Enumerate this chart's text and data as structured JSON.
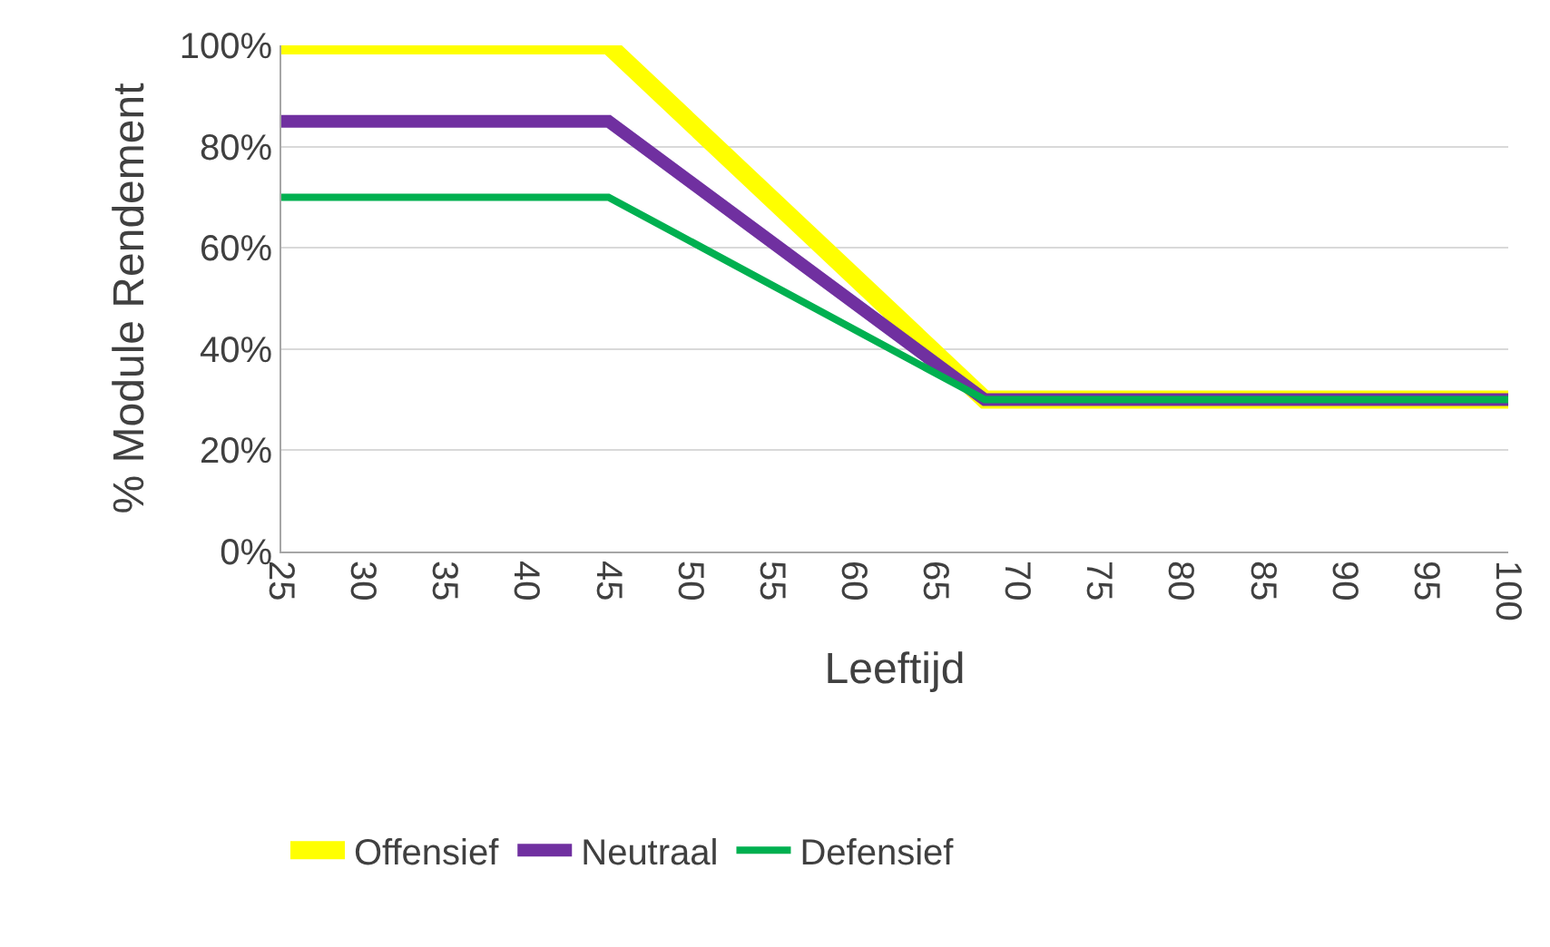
{
  "chart_data": {
    "type": "line",
    "xlabel": "Leeftijd",
    "ylabel": "% Module Rendement",
    "x": [
      25,
      45,
      68,
      100
    ],
    "series": [
      {
        "name": "Offensief",
        "color": "#ffff00",
        "values": [
          100,
          100,
          30,
          30
        ]
      },
      {
        "name": "Neutraal",
        "color": "#7030a0",
        "values": [
          85,
          85,
          30,
          30
        ]
      },
      {
        "name": "Defensief",
        "color": "#00b050",
        "values": [
          70,
          70,
          30,
          30
        ]
      }
    ],
    "xlim": [
      25,
      100
    ],
    "xticks": [
      25,
      30,
      35,
      40,
      45,
      50,
      55,
      60,
      65,
      70,
      75,
      80,
      85,
      90,
      95,
      100
    ],
    "ylim": [
      0,
      100
    ],
    "yticks": [
      {
        "value": 0,
        "label": "0%"
      },
      {
        "value": 20,
        "label": "20%"
      },
      {
        "value": 40,
        "label": "40%"
      },
      {
        "value": 60,
        "label": "60%"
      },
      {
        "value": 80,
        "label": "80%"
      },
      {
        "value": 100,
        "label": "100%"
      }
    ],
    "grid": "y",
    "legend": "bottom",
    "marker": "none",
    "line_style": "solid"
  }
}
